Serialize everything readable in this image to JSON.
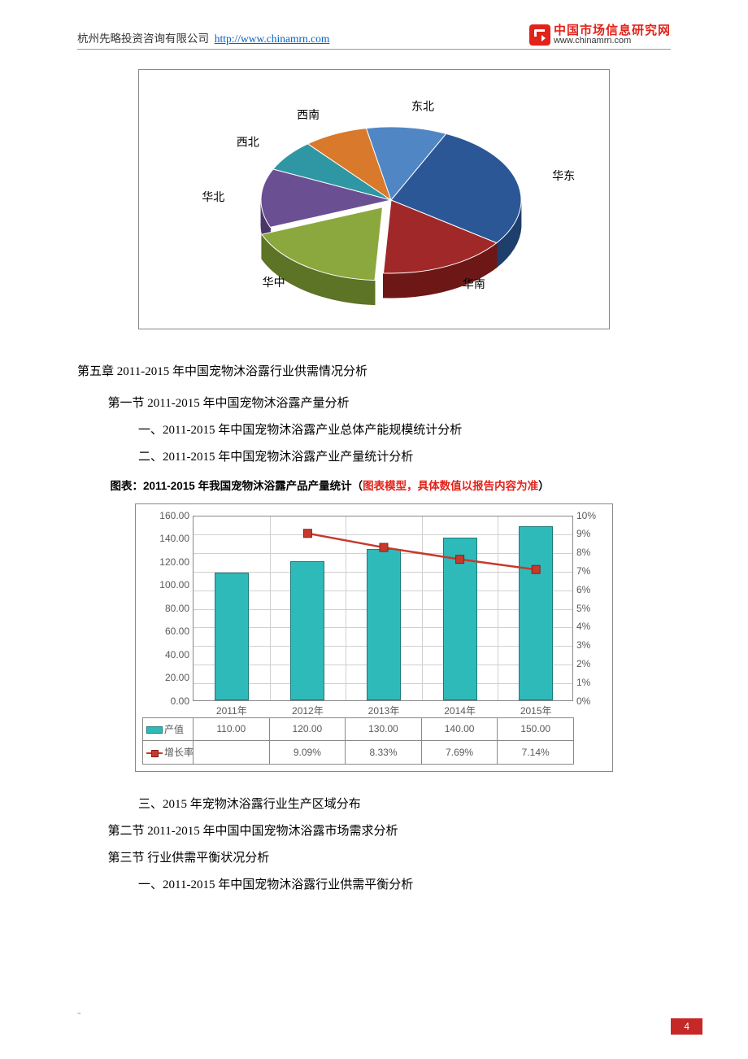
{
  "header": {
    "company": "杭州先略投资咨询有限公司",
    "url_label": "http://www.chinamrn.com",
    "logo_cn": "中国市场信息研究网",
    "logo_en": "www.chinamrn.com"
  },
  "pie_chart": {
    "type": "pie",
    "slices": [
      {
        "label": "华东",
        "value": 28,
        "color": "#2b5797",
        "side": "#1e3e6b"
      },
      {
        "label": "华南",
        "value": 16,
        "color": "#a02828",
        "side": "#6e1717"
      },
      {
        "label": "华中",
        "value": 18,
        "color": "#8aa83d",
        "side": "#5d7326"
      },
      {
        "label": "华北",
        "value": 13,
        "color": "#6a5092",
        "side": "#4a3768"
      },
      {
        "label": "西北",
        "value": 7,
        "color": "#2f97a3",
        "side": "#1f6a73"
      },
      {
        "label": "西南",
        "value": 8,
        "color": "#d8792b",
        "side": "#9e561d"
      },
      {
        "label": "东北",
        "value": 10,
        "color": "#5086c4",
        "side": "#365e8e"
      }
    ],
    "background_color": "#ffffff"
  },
  "body": {
    "chapter5": "第五章 2011-2015 年中国宠物沐浴露行业供需情况分析",
    "s5_1": "第一节 2011-2015 年中国宠物沐浴露产量分析",
    "i5_1_1": "一、2011-2015 年中国宠物沐浴露产业总体产能规模统计分析",
    "i5_1_2": "二、2011-2015 年中国宠物沐浴露产业产量统计分析",
    "chart2_caption_a": "图表：2011-2015 年我国宠物沐浴露产品产量统计（",
    "chart2_caption_b": "图表模型，具体数值以报告内容为准",
    "chart2_caption_c": "）",
    "i5_1_3": "三、2015 年宠物沐浴露行业生产区域分布",
    "s5_2": "第二节 2011-2015 年中国中国宠物沐浴露市场需求分析",
    "s5_3": "第三节 行业供需平衡状况分析",
    "i5_3_1": "一、2011-2015 年中国宠物沐浴露行业供需平衡分析"
  },
  "combo_chart": {
    "type": "bar+line",
    "categories": [
      "2011年",
      "2012年",
      "2013年",
      "2014年",
      "2015年"
    ],
    "bars": {
      "label": "产值",
      "values": [
        110.0,
        120.0,
        130.0,
        140.0,
        150.0
      ],
      "color": "#2fbaba",
      "border": "#1a7a7a"
    },
    "line": {
      "label": "增长率",
      "values": [
        null,
        9.09,
        8.33,
        7.69,
        7.14
      ],
      "color": "#c63a2e",
      "marker": "square",
      "marker_border": "#8a1f16"
    },
    "y_left": {
      "min": 0,
      "max": 160,
      "step": 20,
      "format": ".2f"
    },
    "y_right": {
      "min": 0,
      "max": 10,
      "step": 1,
      "format": "%"
    },
    "grid_color": "#d0d0d0",
    "background_color": "#ffffff",
    "label_fontsize": 12
  },
  "page_number": "4"
}
